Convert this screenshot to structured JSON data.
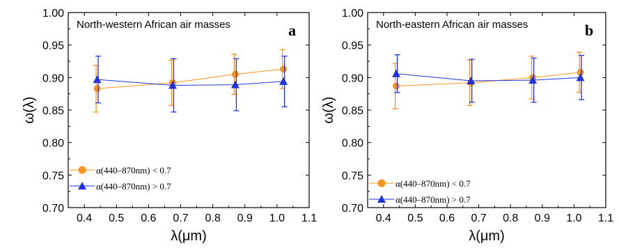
{
  "chart_data": [
    {
      "type": "line",
      "panel": "a",
      "annotation": "North-western African air masses",
      "xlabel": "λ(μm)",
      "ylabel": "ω(λ)",
      "xlim": [
        0.35,
        1.1
      ],
      "ylim": [
        0.7,
        1.0
      ],
      "xticks": [
        "0.4",
        "0.5",
        "0.6",
        "0.7",
        "0.8",
        "0.9",
        "1.0",
        "1.1"
      ],
      "yticks": [
        "0.70",
        "0.75",
        "0.80",
        "0.85",
        "0.90",
        "0.95",
        "1.00"
      ],
      "legend_position": "bottom-left",
      "series": [
        {
          "name": "α(440–870nm) < 0.7",
          "marker": "circle",
          "color": "#f7941d",
          "x": [
            0.44,
            0.675,
            0.87,
            1.02
          ],
          "y": [
            0.883,
            0.892,
            0.905,
            0.913
          ],
          "err": [
            0.036,
            0.035,
            0.031,
            0.03
          ]
        },
        {
          "name": "α(440–870nm) > 0.7",
          "marker": "triangle",
          "color": "#2233dd",
          "x": [
            0.44,
            0.675,
            0.87,
            1.02
          ],
          "y": [
            0.897,
            0.888,
            0.889,
            0.894
          ],
          "err": [
            0.036,
            0.041,
            0.04,
            0.039
          ]
        }
      ]
    },
    {
      "type": "line",
      "panel": "b",
      "annotation": "North-eastern African air masses",
      "xlabel": "λ(μm)",
      "ylabel": "ω(λ)",
      "xlim": [
        0.35,
        1.1
      ],
      "ylim": [
        0.7,
        1.0
      ],
      "xticks": [
        "0.4",
        "0.5",
        "0.6",
        "0.7",
        "0.8",
        "0.9",
        "1.0",
        "1.1"
      ],
      "yticks": [
        "0.70",
        "0.75",
        "0.80",
        "0.85",
        "0.90",
        "0.95",
        "1.00"
      ],
      "legend_position": "bottom-left",
      "series": [
        {
          "name": "α(440–870nm) < 0.7",
          "marker": "circle",
          "color": "#f7941d",
          "x": [
            0.44,
            0.675,
            0.87,
            1.02
          ],
          "y": [
            0.887,
            0.892,
            0.9,
            0.908
          ],
          "err": [
            0.035,
            0.035,
            0.033,
            0.031
          ]
        },
        {
          "name": "α(440–870nm) > 0.7",
          "marker": "triangle",
          "color": "#2233dd",
          "x": [
            0.44,
            0.675,
            0.87,
            1.02
          ],
          "y": [
            0.906,
            0.895,
            0.896,
            0.9
          ],
          "err": [
            0.029,
            0.033,
            0.034,
            0.034
          ]
        }
      ]
    }
  ]
}
